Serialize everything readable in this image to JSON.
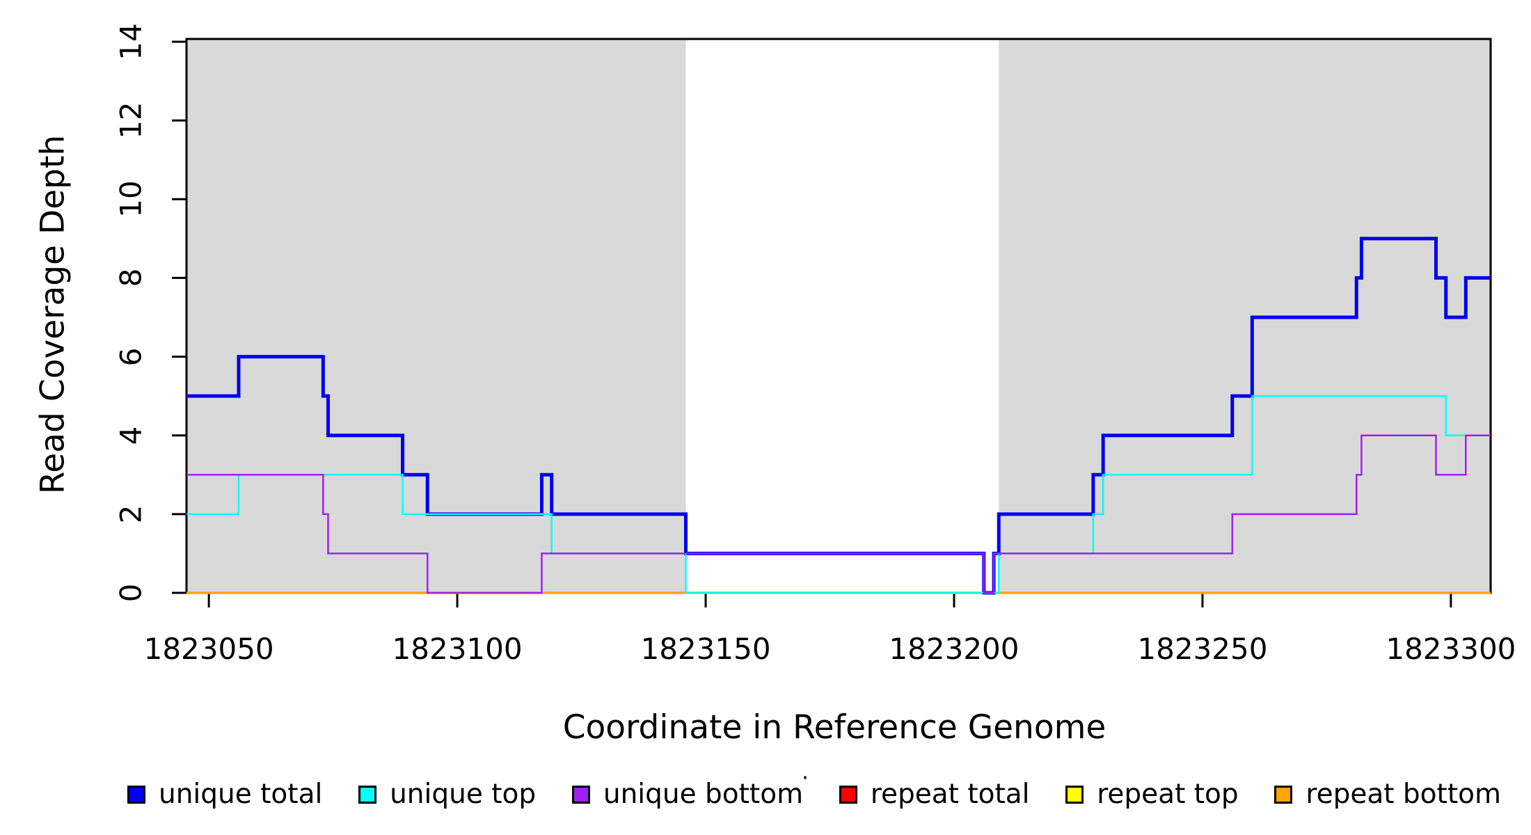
{
  "chart_data": {
    "type": "line",
    "subtype": "step-coverage",
    "title": "",
    "xlabel": "Coordinate in Reference Genome",
    "ylabel": "Read Coverage Depth",
    "xlim": [
      1823045.5,
      1823308
    ],
    "ylim": [
      0,
      14
    ],
    "grid": false,
    "legend_position": "bottom",
    "x_ticks": [
      {
        "value": 1823050,
        "label": "1823050"
      },
      {
        "value": 1823100,
        "label": "1823100"
      },
      {
        "value": 1823150,
        "label": "1823150"
      },
      {
        "value": 1823200,
        "label": "1823200"
      },
      {
        "value": 1823250,
        "label": "1823250"
      },
      {
        "value": 1823300,
        "label": "1823300"
      }
    ],
    "y_ticks": [
      {
        "value": 0,
        "label": "0"
      },
      {
        "value": 2,
        "label": "2"
      },
      {
        "value": 4,
        "label": "4"
      },
      {
        "value": 6,
        "label": "6"
      },
      {
        "value": 8,
        "label": "8"
      },
      {
        "value": 10,
        "label": "10"
      },
      {
        "value": 12,
        "label": "12"
      },
      {
        "value": 14,
        "label": "14"
      }
    ],
    "shaded_regions": [
      {
        "from": 1823045.5,
        "to": 1823146,
        "color": "#D9D9D9"
      },
      {
        "from": 1823209,
        "to": 1823308,
        "color": "#D9D9D9"
      }
    ],
    "series": [
      {
        "name": "repeat total",
        "color": "#FF0000",
        "line_width": 2.5,
        "steps": [
          [
            1823045.5,
            0
          ]
        ]
      },
      {
        "name": "repeat top",
        "color": "#FFFF00",
        "line_width": 2.5,
        "steps": [
          [
            1823045.5,
            0
          ]
        ]
      },
      {
        "name": "repeat bottom",
        "color": "#FFA500",
        "line_width": 3.5,
        "steps": [
          [
            1823045.5,
            0
          ]
        ]
      },
      {
        "name": "unique total",
        "color": "#0000EE",
        "line_width": 5,
        "steps": [
          [
            1823045.5,
            5
          ],
          [
            1823056,
            6
          ],
          [
            1823073,
            5
          ],
          [
            1823074,
            4
          ],
          [
            1823089,
            3
          ],
          [
            1823094,
            2
          ],
          [
            1823117,
            3
          ],
          [
            1823119,
            2
          ],
          [
            1823146,
            1
          ],
          [
            1823206,
            0
          ],
          [
            1823208,
            1
          ],
          [
            1823209,
            2
          ],
          [
            1823228,
            3
          ],
          [
            1823230,
            4
          ],
          [
            1823256,
            5
          ],
          [
            1823260,
            7
          ],
          [
            1823281,
            8
          ],
          [
            1823282,
            9
          ],
          [
            1823297,
            8
          ],
          [
            1823299,
            7
          ],
          [
            1823303,
            8
          ]
        ]
      },
      {
        "name": "unique top",
        "color": "#00FFFF",
        "line_width": 2.5,
        "steps": [
          [
            1823045.5,
            2
          ],
          [
            1823056,
            3
          ],
          [
            1823089,
            2
          ],
          [
            1823119,
            1
          ],
          [
            1823146,
            0
          ],
          [
            1823209,
            1
          ],
          [
            1823228,
            2
          ],
          [
            1823230,
            3
          ],
          [
            1823260,
            5
          ],
          [
            1823299,
            4
          ]
        ]
      },
      {
        "name": "unique bottom",
        "color": "#A020F0",
        "line_width": 2.5,
        "steps": [
          [
            1823045.5,
            3
          ],
          [
            1823073,
            2
          ],
          [
            1823074,
            1
          ],
          [
            1823094,
            0
          ],
          [
            1823117,
            1
          ],
          [
            1823206,
            0
          ],
          [
            1823208,
            1
          ],
          [
            1823256,
            2
          ],
          [
            1823281,
            3
          ],
          [
            1823282,
            4
          ],
          [
            1823297,
            3
          ],
          [
            1823303,
            4
          ]
        ]
      }
    ]
  },
  "legend": {
    "items": [
      {
        "label": "unique total",
        "color": "#0000EE"
      },
      {
        "label": "unique top",
        "color": "#00FFFF"
      },
      {
        "label": "unique bottom",
        "color": "#A020F0"
      },
      {
        "label": "repeat total",
        "color": "#FF0000"
      },
      {
        "label": "repeat top",
        "color": "#FFFF00"
      },
      {
        "label": "repeat bottom",
        "color": "#FFA500"
      }
    ]
  },
  "colors": {
    "background": "#FFFFFF",
    "shade": "#D9D9D9",
    "axis": "#000000"
  }
}
